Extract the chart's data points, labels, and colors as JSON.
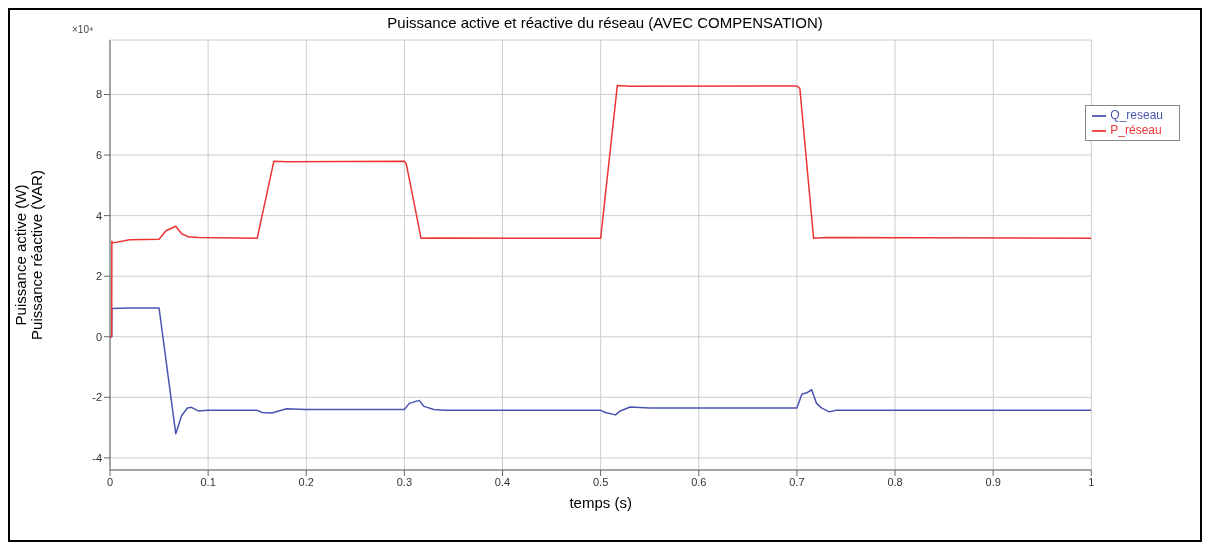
{
  "chart_data": {
    "type": "line",
    "title": "Puissance active et réactive du réseau (AVEC COMPENSATION)",
    "xlabel": "temps (s)",
    "ylabel": "Puissance active (W)\nPuissance réactive (VAR)",
    "annotations": [
      "×10⁴"
    ],
    "series": [
      {
        "name": "Q_reseau",
        "color": "#4a54b0",
        "x": [
          0,
          0.0017,
          0.0019,
          0.02,
          0.05,
          0.067,
          0.073,
          0.079,
          0.083,
          0.09,
          0.1,
          0.15,
          0.155,
          0.165,
          0.172,
          0.18,
          0.2,
          0.3,
          0.305,
          0.31,
          0.315,
          0.32,
          0.33,
          0.34,
          0.5,
          0.505,
          0.515,
          0.52,
          0.53,
          0.55,
          0.7,
          0.705,
          0.71,
          0.715,
          0.72,
          0.725,
          0.733,
          0.74,
          1
        ],
        "values": [
          0,
          0,
          0.93,
          0.95,
          0.95,
          -3.2,
          -2.6,
          -2.35,
          -2.33,
          -2.45,
          -2.43,
          -2.43,
          -2.5,
          -2.52,
          -2.45,
          -2.38,
          -2.4,
          -2.4,
          -2.2,
          -2.15,
          -2.1,
          -2.3,
          -2.4,
          -2.43,
          -2.43,
          -2.5,
          -2.58,
          -2.45,
          -2.32,
          -2.35,
          -2.35,
          -1.9,
          -1.85,
          -1.75,
          -2.2,
          -2.35,
          -2.48,
          -2.43,
          -2.43
        ]
      },
      {
        "name": "P_réseau",
        "color": "#ee3333",
        "x": [
          0,
          0.0017,
          0.0019,
          0.003,
          0.02,
          0.05,
          0.057,
          0.067,
          0.073,
          0.08,
          0.09,
          0.15,
          0.167,
          0.18,
          0.3,
          0.302,
          0.317,
          0.33,
          0.5,
          0.517,
          0.53,
          0.7,
          0.703,
          0.717,
          0.73,
          1
        ],
        "values": [
          0,
          0,
          3.15,
          3.1,
          3.2,
          3.22,
          3.5,
          3.65,
          3.4,
          3.3,
          3.28,
          3.25,
          5.8,
          5.78,
          5.8,
          5.7,
          3.25,
          3.26,
          3.25,
          8.3,
          8.27,
          8.28,
          8.2,
          3.25,
          3.28,
          3.25
        ]
      }
    ],
    "xlim": [
      0,
      1
    ],
    "xticks": [
      0,
      0.1,
      0.2,
      0.3,
      0.4,
      0.5,
      0.6,
      0.7,
      0.8,
      0.9,
      1
    ],
    "ylim": [
      -4.4,
      9.8
    ],
    "yticks": [
      -4,
      -2,
      0,
      2,
      4,
      6,
      8
    ],
    "grid": true,
    "legend": "top right",
    "marker": "none",
    "line_style": "solid"
  }
}
